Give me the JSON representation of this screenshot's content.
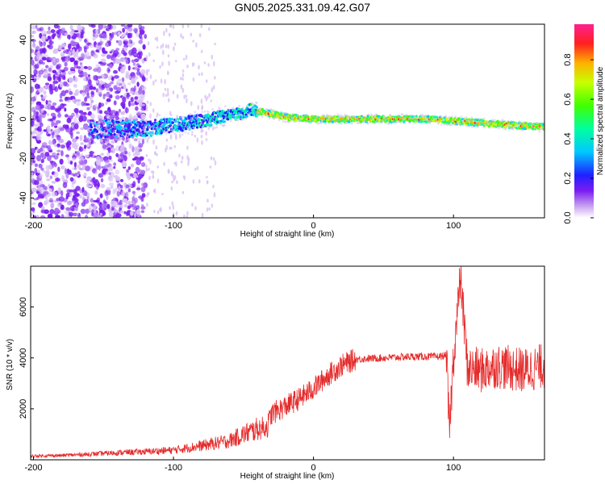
{
  "title": "GN05.2025.331.09.42.G07",
  "chart_data": [
    {
      "type": "heatmap",
      "xlabel": "Height of straight line (km)",
      "ylabel": "Frequency (Hz)",
      "xlim": [
        -202,
        165
      ],
      "ylim": [
        -50,
        48
      ],
      "xticks": [
        -200,
        -100,
        0,
        100
      ],
      "yticks": [
        -40,
        -20,
        0,
        20,
        40
      ],
      "colorbar": {
        "label": "Normalized spectral amplitude",
        "range": [
          0,
          0.98
        ],
        "ticks": [
          0.0,
          0.2,
          0.4,
          0.6,
          0.8
        ]
      },
      "ridge_frequency": {
        "x": [
          -160,
          -140,
          -120,
          -100,
          -80,
          -60,
          -50,
          -45,
          -40,
          -20,
          0,
          20,
          50,
          80,
          100,
          120,
          140,
          165
        ],
        "y": [
          -5,
          -5,
          -5,
          -3,
          -1,
          2,
          3,
          5,
          4,
          1,
          0,
          0,
          0,
          0,
          -1,
          -2,
          -3,
          -4
        ]
      }
    },
    {
      "type": "line",
      "xlabel": "Height of straight line (km)",
      "ylabel": "SNR (10 * v/v)",
      "xlim": [
        -202,
        165
      ],
      "ylim": [
        0,
        7600
      ],
      "xticks": [
        -200,
        -100,
        0,
        100
      ],
      "yticks": [
        2000,
        4000,
        6000
      ],
      "series": [
        {
          "color": "#e52a2a",
          "x": [
            -202,
            -180,
            -160,
            -140,
            -120,
            -100,
            -80,
            -60,
            -50,
            -40,
            -33,
            -30,
            -20,
            -10,
            0,
            10,
            20,
            30,
            50,
            70,
            90,
            95,
            97,
            100,
            105,
            110,
            120,
            130,
            140,
            150,
            165
          ],
          "y": [
            150,
            170,
            220,
            280,
            320,
            380,
            550,
            750,
            1000,
            1200,
            1300,
            1800,
            2100,
            2400,
            2800,
            3300,
            3700,
            3950,
            4000,
            4050,
            4050,
            4100,
            1000,
            4000,
            7200,
            3600,
            3500,
            3700,
            3600,
            3500,
            3700
          ]
        }
      ]
    }
  ]
}
